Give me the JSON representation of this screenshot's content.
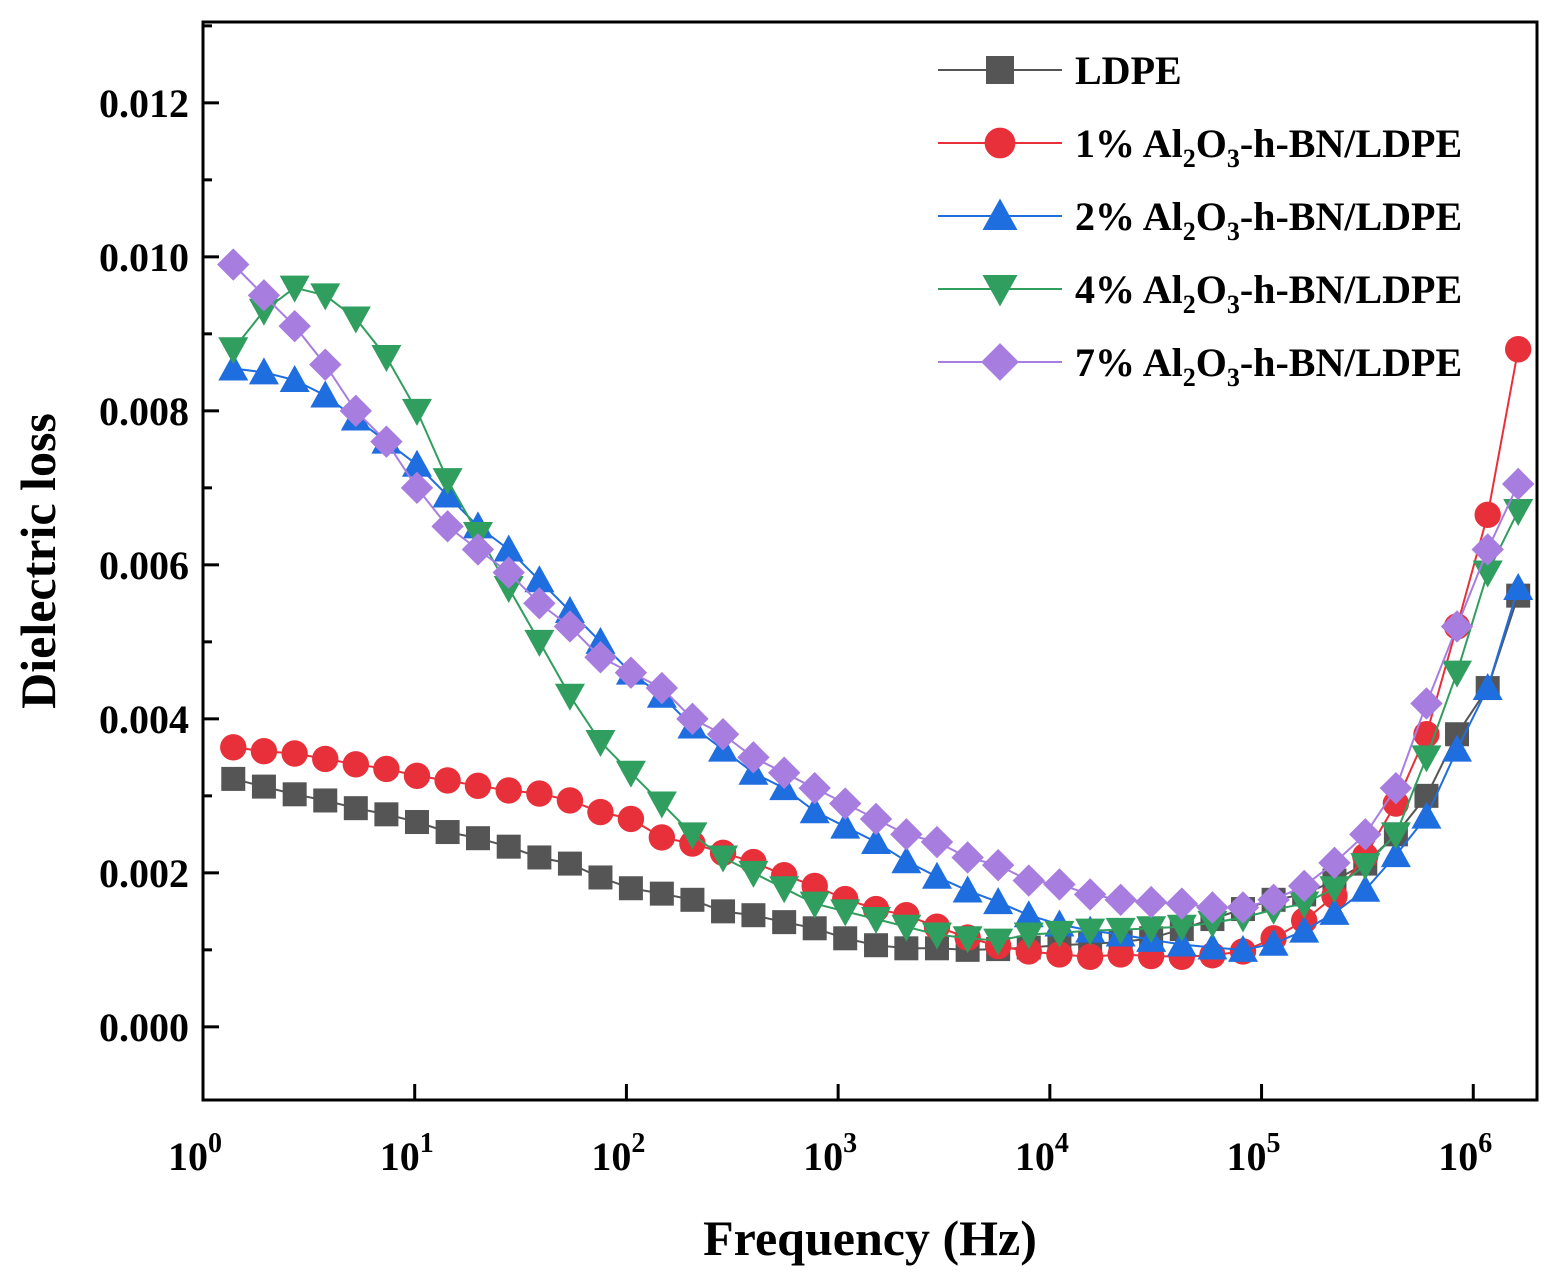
{
  "chart_data": {
    "type": "line",
    "title": "",
    "xlabel": "Frequency (Hz)",
    "ylabel": "Dielectric loss",
    "xscale": "log",
    "xlim": [
      1,
      2000000
    ],
    "ylim": [
      -0.00095,
      0.01305
    ],
    "x_tick_labels": [
      {
        "base": "10",
        "exp": "0"
      },
      {
        "base": "10",
        "exp": "1"
      },
      {
        "base": "10",
        "exp": "2"
      },
      {
        "base": "10",
        "exp": "3"
      },
      {
        "base": "10",
        "exp": "4"
      },
      {
        "base": "10",
        "exp": "5"
      },
      {
        "base": "10",
        "exp": "6"
      }
    ],
    "y_tick_labels": [
      "0.000",
      "0.002",
      "0.004",
      "0.006",
      "0.008",
      "0.010",
      "0.012"
    ],
    "legend_position": "top-right",
    "x": [
      1.39,
      1.94,
      2.71,
      3.78,
      5.27,
      7.35,
      10.25,
      14.3,
      19.9,
      27.8,
      38.8,
      54.1,
      75.4,
      105,
      147,
      205,
      286,
      398,
      556,
      775,
      1080,
      1510,
      2100,
      2930,
      4090,
      5700,
      7950,
      11100,
      15500,
      21600,
      30100,
      42000,
      58600,
      81700,
      114000,
      159000,
      221000,
      309000,
      431000,
      601000,
      838000,
      1170000,
      1630000
    ],
    "series": [
      {
        "name_main": "LDPE",
        "name_sub": "",
        "name_tail": "",
        "color": "#555555",
        "marker": "square",
        "values": [
          0.00322,
          0.00312,
          0.00302,
          0.00294,
          0.00284,
          0.00276,
          0.00266,
          0.00253,
          0.00245,
          0.00234,
          0.0022,
          0.00212,
          0.00194,
          0.0018,
          0.00173,
          0.00165,
          0.0015,
          0.00145,
          0.00136,
          0.00128,
          0.00115,
          0.00106,
          0.00102,
          0.00102,
          0.001,
          0.00101,
          0.00103,
          0.00106,
          0.00108,
          0.0011,
          0.00115,
          0.00127,
          0.0014,
          0.00153,
          0.00165,
          0.00172,
          0.0019,
          0.00212,
          0.0025,
          0.003,
          0.0038,
          0.0044,
          0.0056
        ]
      },
      {
        "name_main": "1% Al",
        "name_sub": "2",
        "name_tail": "O3-h-BN/LDPE",
        "color": "#e8303a",
        "marker": "circle",
        "values": [
          0.00363,
          0.00358,
          0.00355,
          0.00348,
          0.00341,
          0.00335,
          0.00326,
          0.0032,
          0.00313,
          0.00307,
          0.00303,
          0.00294,
          0.00279,
          0.0027,
          0.00246,
          0.00238,
          0.00226,
          0.00214,
          0.00197,
          0.00183,
          0.00166,
          0.00153,
          0.00145,
          0.0013,
          0.00116,
          0.00105,
          0.00098,
          0.00094,
          0.00091,
          0.00094,
          0.00092,
          0.00091,
          0.00093,
          0.00098,
          0.00115,
          0.00138,
          0.0017,
          0.00222,
          0.0029,
          0.0038,
          0.0052,
          0.00665,
          0.0088
        ]
      },
      {
        "name_main": "2% Al",
        "name_sub": "2",
        "name_tail": "O3-h-BN/LDPE",
        "color": "#1f6ee0",
        "marker": "triangle-up",
        "values": [
          0.00855,
          0.0085,
          0.0084,
          0.0082,
          0.0079,
          0.0076,
          0.0073,
          0.0069,
          0.0065,
          0.0062,
          0.0058,
          0.0054,
          0.005,
          0.0046,
          0.0043,
          0.0039,
          0.0036,
          0.0033,
          0.0031,
          0.0028,
          0.0026,
          0.0024,
          0.00215,
          0.00195,
          0.00177,
          0.00162,
          0.00145,
          0.00133,
          0.00125,
          0.0012,
          0.00113,
          0.00107,
          0.00103,
          0.001,
          0.00108,
          0.00125,
          0.00148,
          0.00178,
          0.00223,
          0.00273,
          0.0036,
          0.0044,
          0.0057
        ]
      },
      {
        "name_main": "4% Al",
        "name_sub": "2",
        "name_tail": "O3-h-BN/LDPE",
        "color": "#2f9e5e",
        "marker": "triangle-down",
        "values": [
          0.0088,
          0.0093,
          0.0096,
          0.0095,
          0.0092,
          0.0087,
          0.008,
          0.0071,
          0.0064,
          0.0057,
          0.005,
          0.0043,
          0.0037,
          0.0033,
          0.0029,
          0.0025,
          0.0022,
          0.002,
          0.0018,
          0.0016,
          0.0015,
          0.0014,
          0.0013,
          0.0012,
          0.00115,
          0.00112,
          0.0012,
          0.00122,
          0.00125,
          0.00126,
          0.00128,
          0.0013,
          0.00135,
          0.00142,
          0.00152,
          0.0016,
          0.0018,
          0.0021,
          0.0025,
          0.0035,
          0.0046,
          0.0059,
          0.0067
        ]
      },
      {
        "name_main": "7% Al",
        "name_sub": "2",
        "name_tail": "O3-h-BN/LDPE",
        "color": "#a77de0",
        "marker": "diamond",
        "values": [
          0.0099,
          0.0095,
          0.0091,
          0.0086,
          0.008,
          0.0076,
          0.007,
          0.0065,
          0.0062,
          0.0059,
          0.0055,
          0.0052,
          0.0048,
          0.0046,
          0.0044,
          0.004,
          0.0038,
          0.0035,
          0.0033,
          0.0031,
          0.0029,
          0.0027,
          0.0025,
          0.0024,
          0.0022,
          0.0021,
          0.0019,
          0.00185,
          0.00172,
          0.00165,
          0.00162,
          0.0016,
          0.00155,
          0.00155,
          0.00165,
          0.00183,
          0.00213,
          0.0025,
          0.0031,
          0.0042,
          0.0052,
          0.0062,
          0.00705
        ]
      }
    ]
  }
}
